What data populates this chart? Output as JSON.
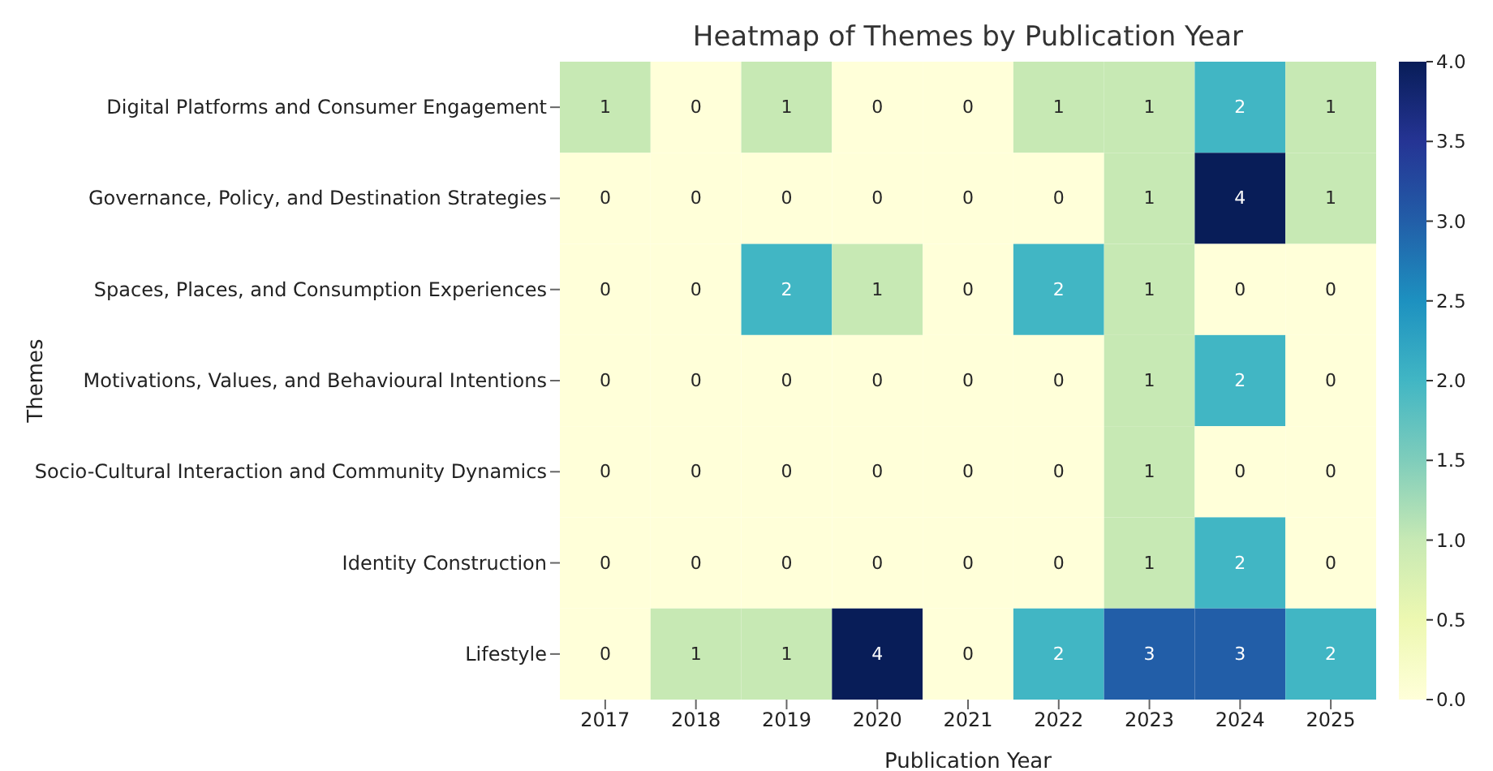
{
  "chart_data": {
    "type": "heatmap",
    "title": "Heatmap of Themes by Publication Year",
    "xlabel": "Publication Year",
    "ylabel": "Themes",
    "categories": [
      "2017",
      "2018",
      "2019",
      "2020",
      "2021",
      "2022",
      "2023",
      "2024",
      "2025"
    ],
    "y_categories": [
      "Digital Platforms and Consumer Engagement",
      "Governance, Policy, and Destination Strategies",
      "Spaces, Places, and Consumption Experiences",
      "Motivations, Values, and Behavioural Intentions",
      "Socio-Cultural Interaction and Community Dynamics",
      "Identity Construction",
      "Lifestyle"
    ],
    "cells": [
      [
        1,
        0,
        1,
        0,
        0,
        1,
        1,
        2,
        1
      ],
      [
        0,
        0,
        0,
        0,
        0,
        0,
        1,
        4,
        1
      ],
      [
        0,
        0,
        2,
        1,
        0,
        2,
        1,
        0,
        0
      ],
      [
        0,
        0,
        0,
        0,
        0,
        0,
        1,
        2,
        0
      ],
      [
        0,
        0,
        0,
        0,
        0,
        0,
        1,
        0,
        0
      ],
      [
        0,
        0,
        0,
        0,
        0,
        0,
        1,
        2,
        0
      ],
      [
        0,
        1,
        1,
        4,
        0,
        2,
        3,
        3,
        2
      ]
    ],
    "data_labels": true,
    "clim": [
      0,
      4
    ],
    "cticks": [
      {
        "value": 0,
        "label": "0.0"
      },
      {
        "value": 0.5,
        "label": "0.5"
      },
      {
        "value": 1,
        "label": "1.0"
      },
      {
        "value": 1.5,
        "label": "1.5"
      },
      {
        "value": 2,
        "label": "2.0"
      },
      {
        "value": 2.5,
        "label": "2.5"
      },
      {
        "value": 3,
        "label": "3.0"
      },
      {
        "value": 3.5,
        "label": "3.5"
      },
      {
        "value": 4,
        "label": "4.0"
      }
    ]
  }
}
